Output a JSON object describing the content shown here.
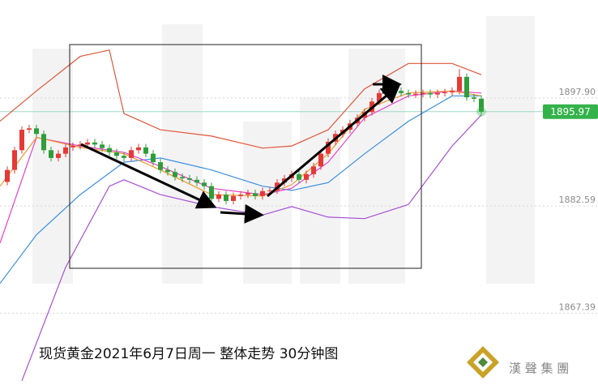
{
  "chart_data": {
    "type": "candlestick",
    "title": "现货黄金2021年6月7日周一 整体走势  30分钟图",
    "brand": "漢 聲 集 團",
    "xlim": [
      -1,
      81
    ],
    "ylim": [
      1857.2,
      1911.8
    ],
    "yticks": [
      {
        "value": 1897.9,
        "label": "1897.90"
      },
      1882.59,
      1867.39
    ],
    "current_price": 1895.97,
    "up_color": "#e53935",
    "down_color": "#2e9e3a",
    "current_color": "#33b24a",
    "open": [
      1886.0,
      1887.7,
      1890.5,
      1893.4,
      1893.6,
      1892.8,
      1890.5,
      1889.4,
      1890.0,
      1890.9,
      1891.1,
      1891.3,
      1891.6,
      1891.3,
      1890.8,
      1890.2,
      1889.7,
      1889.4,
      1890.5,
      1890.9,
      1890.0,
      1888.8,
      1887.7,
      1887.4,
      1886.7,
      1886.5,
      1886.3,
      1885.9,
      1885.4,
      1883.6,
      1884.2,
      1883.3,
      1884.0,
      1884.2,
      1884.4,
      1884.0,
      1884.7,
      1884.8,
      1885.9,
      1886.5,
      1887.1,
      1886.3,
      1887.1,
      1888.2,
      1890.0,
      1891.7,
      1892.8,
      1893.4,
      1894.3,
      1895.1,
      1895.9,
      1897.4,
      1898.6,
      1898.9,
      1898.9,
      1898.6,
      1898.4,
      1898.5,
      1898.6,
      1898.4,
      1898.6,
      1898.7,
      1898.9,
      1900.9,
      1898.0,
      1897.8
    ],
    "close": [
      1887.7,
      1890.5,
      1893.4,
      1893.6,
      1892.8,
      1890.5,
      1889.4,
      1890.0,
      1890.9,
      1891.1,
      1891.3,
      1891.6,
      1891.3,
      1890.8,
      1890.2,
      1889.7,
      1889.4,
      1890.5,
      1890.9,
      1890.0,
      1888.8,
      1887.7,
      1887.4,
      1886.7,
      1886.5,
      1886.3,
      1885.9,
      1885.4,
      1883.6,
      1884.2,
      1883.3,
      1884.0,
      1884.2,
      1884.4,
      1884.0,
      1884.7,
      1884.8,
      1885.9,
      1886.5,
      1887.1,
      1886.3,
      1887.1,
      1888.2,
      1890.0,
      1891.7,
      1892.8,
      1893.4,
      1894.3,
      1895.1,
      1895.9,
      1897.4,
      1898.6,
      1898.9,
      1898.9,
      1898.6,
      1898.4,
      1898.5,
      1898.6,
      1898.4,
      1898.6,
      1898.7,
      1898.9,
      1900.9,
      1898.0,
      1897.8,
      1895.97
    ],
    "high": [
      1888.2,
      1891.0,
      1893.9,
      1894.1,
      1894.1,
      1893.3,
      1891.0,
      1890.5,
      1891.4,
      1891.6,
      1891.8,
      1892.1,
      1892.1,
      1891.8,
      1891.3,
      1890.7,
      1890.2,
      1891.0,
      1891.4,
      1891.4,
      1890.5,
      1889.3,
      1888.2,
      1887.9,
      1887.2,
      1887.0,
      1886.8,
      1886.4,
      1885.9,
      1884.7,
      1884.7,
      1884.5,
      1884.7,
      1884.9,
      1884.9,
      1885.2,
      1885.3,
      1886.4,
      1887.0,
      1887.6,
      1887.6,
      1887.6,
      1888.7,
      1890.5,
      1892.2,
      1893.3,
      1893.9,
      1894.8,
      1895.6,
      1896.4,
      1897.9,
      1899.1,
      1899.4,
      1899.4,
      1899.4,
      1899.1,
      1899.0,
      1899.1,
      1899.1,
      1899.1,
      1899.2,
      1899.4,
      1902.0,
      1901.4,
      1898.5,
      1898.3
    ],
    "low": [
      1885.5,
      1887.2,
      1890.0,
      1892.9,
      1892.3,
      1890.0,
      1888.9,
      1888.9,
      1889.5,
      1890.4,
      1890.6,
      1890.8,
      1890.8,
      1890.3,
      1889.7,
      1889.2,
      1888.9,
      1888.9,
      1890.0,
      1889.5,
      1888.3,
      1887.2,
      1886.9,
      1886.2,
      1886.0,
      1885.8,
      1885.4,
      1884.9,
      1883.1,
      1883.1,
      1882.8,
      1882.8,
      1883.5,
      1883.7,
      1883.5,
      1883.5,
      1884.2,
      1884.3,
      1885.4,
      1886.0,
      1885.8,
      1885.8,
      1886.6,
      1887.7,
      1889.5,
      1891.2,
      1892.3,
      1892.9,
      1893.8,
      1894.6,
      1895.4,
      1896.9,
      1898.1,
      1898.4,
      1898.1,
      1897.9,
      1897.9,
      1898.0,
      1897.9,
      1897.9,
      1898.1,
      1898.2,
      1898.4,
      1897.5,
      1897.3,
      1895.5
    ],
    "series": [
      {
        "color": "#e0563b",
        "x": [
          -1,
          4,
          10,
          14,
          16,
          21,
          28,
          35,
          39,
          44,
          49,
          55,
          61,
          65
        ],
        "values": [
          1894.6,
          1898.9,
          1903.8,
          1904.7,
          1895.7,
          1893.4,
          1892.5,
          1890.8,
          1891.1,
          1893.4,
          1899.2,
          1902.8,
          1902.8,
          1901.2
        ]
      },
      {
        "color": "#a64fd6",
        "x": [
          2,
          8,
          14,
          16,
          21,
          28,
          35,
          39,
          44,
          49,
          55,
          61,
          65
        ],
        "values": [
          1857.8,
          1873.9,
          1885.4,
          1886.3,
          1884.2,
          1882.5,
          1881.3,
          1882.5,
          1881.0,
          1880.8,
          1882.8,
          1891.1,
          1895.5
        ]
      },
      {
        "color": "#3a8fe0",
        "x": [
          -1,
          4,
          10,
          16,
          21,
          28,
          35,
          39,
          44,
          49,
          55,
          61,
          65
        ],
        "values": [
          1871.6,
          1878.5,
          1884.2,
          1888.8,
          1889.4,
          1887.7,
          1885.4,
          1884.8,
          1885.9,
          1890.0,
          1894.6,
          1898.2,
          1898.2
        ]
      },
      {
        "color": "#e83fc8",
        "x": [
          -1,
          4,
          10,
          16,
          21,
          28,
          35,
          39,
          44,
          49,
          55,
          61,
          65
        ],
        "values": [
          1877.3,
          1892.3,
          1891.1,
          1890.2,
          1888.2,
          1885.1,
          1884.2,
          1885.1,
          1888.8,
          1895.1,
          1898.2,
          1898.9,
          1898.6
        ]
      },
      {
        "color": "#f0962c",
        "x": [
          -1,
          4,
          10,
          16,
          21,
          28,
          35,
          39,
          44,
          49,
          55,
          61,
          65
        ],
        "values": [
          1885.4,
          1892.3,
          1890.9,
          1890.0,
          1887.7,
          1884.2,
          1884.0,
          1885.6,
          1890.0,
          1896.3,
          1898.6,
          1898.9,
          1898.2
        ]
      }
    ]
  }
}
